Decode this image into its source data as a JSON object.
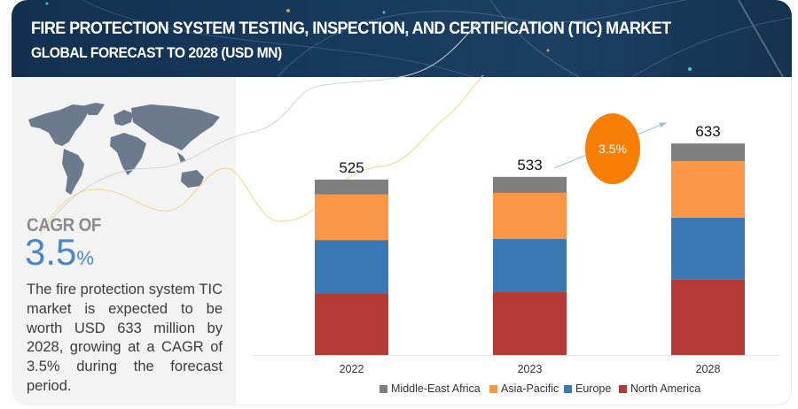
{
  "header": {
    "title": "FIRE PROTECTION SYSTEM TESTING, INSPECTION, AND CERTIFICATION (TIC) MARKET",
    "subtitle": "GLOBAL FORECAST TO 2028 (USD MN)"
  },
  "left_panel": {
    "map_icon": "world-map-icon",
    "cagr_label": "CAGR OF",
    "cagr_number": "3.5",
    "cagr_percent": "%",
    "description": "The fire protection system TIC market is expected to be worth USD 633 million by 2028, growing at a CAGR of 3.5% during the forecast period."
  },
  "growth_bubble": {
    "label": "3.5%"
  },
  "colors": {
    "header_bg": "#17395b",
    "panel_bg": "#f3f3f3",
    "cagr_blue": "#4a86c8",
    "bubble_orange": "#f97e05",
    "middle_east_africa": "#7f7f7f",
    "asia_pacific": "#fa9645",
    "europe": "#3a78b6",
    "north_america": "#b53a33"
  },
  "chart_data": {
    "type": "bar",
    "stacked": true,
    "title": "FIRE PROTECTION SYSTEM TESTING, INSPECTION, AND CERTIFICATION (TIC) MARKET",
    "subtitle": "GLOBAL FORECAST TO 2028 (USD MN)",
    "xlabel": "",
    "ylabel": "",
    "categories": [
      "2022",
      "2023",
      "2028"
    ],
    "totals": [
      "525",
      "533",
      "633"
    ],
    "series": [
      {
        "name": "North America",
        "color": "#b53a33",
        "values": [
          184,
          188,
          226
        ]
      },
      {
        "name": "Europe",
        "color": "#3a78b6",
        "values": [
          160,
          159,
          185
        ]
      },
      {
        "name": "Asia-Pacific",
        "color": "#fa9645",
        "values": [
          136,
          138,
          169
        ]
      },
      {
        "name": "Middle-East Africa",
        "color": "#7f7f7f",
        "values": [
          45,
          48,
          53
        ]
      }
    ],
    "legend": [
      "Middle-East Africa",
      "Asia-Pacific",
      "Europe",
      "North America"
    ],
    "legend_position": "bottom",
    "ylim": [
      0,
      700
    ],
    "grid": false,
    "annotation": "3.5%"
  }
}
